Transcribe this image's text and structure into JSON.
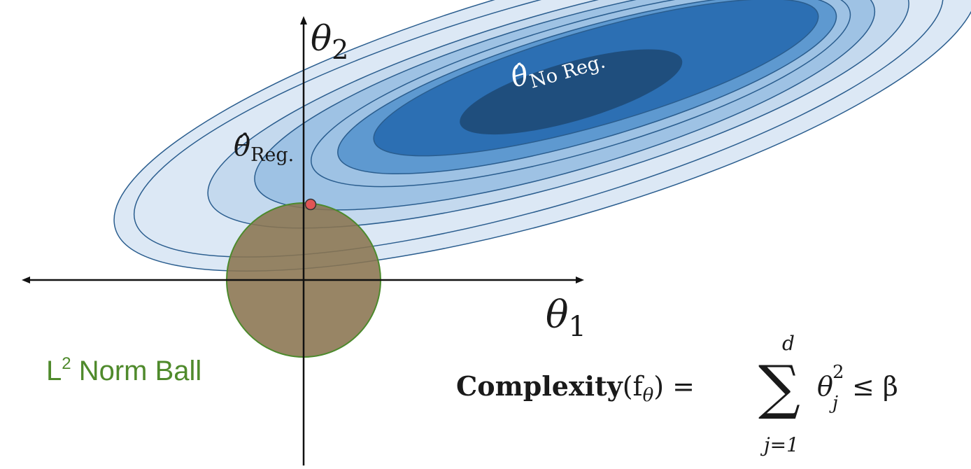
{
  "axes": {
    "x_label_base": "θ",
    "x_label_sub": "1",
    "y_label_base": "θ",
    "y_label_sub": "2"
  },
  "estimates": {
    "no_reg_base": "θ̂",
    "no_reg_sub": "No Reg.",
    "reg_base": "θ̂",
    "reg_sub": "Reg."
  },
  "norm_ball": {
    "label_main": "L",
    "label_sup": "2",
    "label_rest": " Norm Ball"
  },
  "formula": {
    "lhs_bold": "Complexity",
    "lhs_args": "(f",
    "lhs_args_sub": "θ",
    "lhs_close": ") =",
    "sum_symbol": "∑",
    "sum_upper": "d",
    "sum_lower": "j=1",
    "term_base": "θ",
    "term_sup": "2",
    "term_sub": "j",
    "relation": "≤ β"
  },
  "colors": {
    "contour_lightest": "#dce8f5",
    "contour_light": "#c4d9ee",
    "contour_mid": "#9ec2e4",
    "contour_strong": "#5e99d0",
    "contour_deep": "#2c6fb3",
    "contour_core": "#1f4e7d",
    "contour_stroke": "#2a5d8e",
    "ball_fill": "#8a7450",
    "ball_stroke": "#4c8a2c",
    "label_green": "#4f8a2c",
    "point_fill": "#e05555",
    "axis": "#111111"
  }
}
